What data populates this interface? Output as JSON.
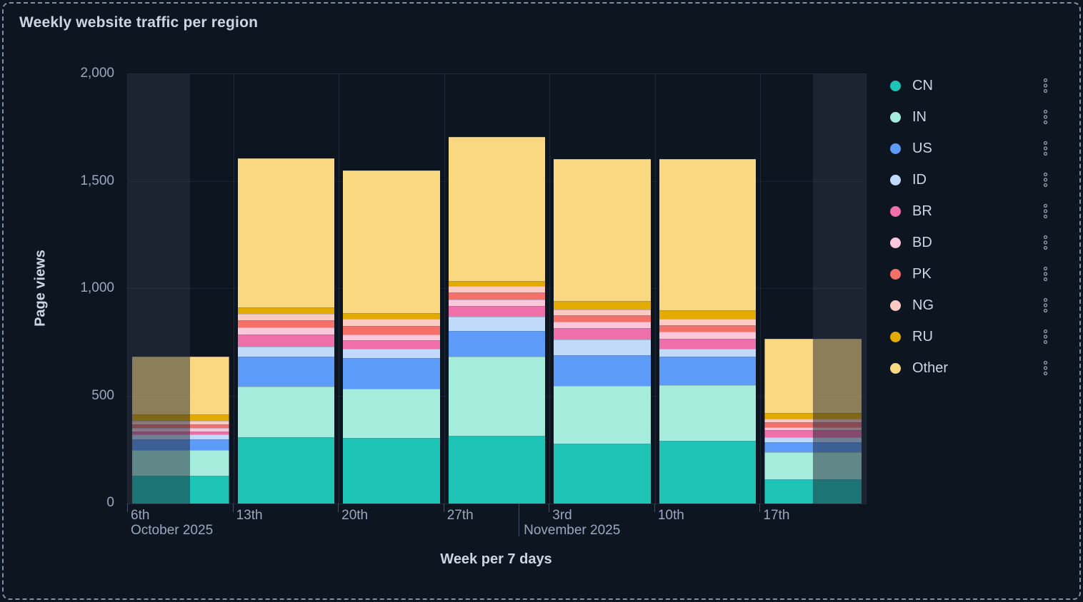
{
  "panel": {
    "title": "Weekly website traffic per region"
  },
  "colors": {
    "background": "#0d1521",
    "panel_border": "#7e90a8",
    "text_primary": "#ccd5e3",
    "text_muted": "#9aa8bf",
    "out_of_range_overlay": "rgba(164,180,210,0.10)"
  },
  "chart_data": {
    "type": "bar",
    "stacked": true,
    "title": "Weekly website traffic per region",
    "xlabel": "Week per 7 days",
    "ylabel": "Page views",
    "ylim": [
      0,
      2000
    ],
    "yticks": [
      {
        "v": 0,
        "label": "0"
      },
      {
        "v": 500,
        "label": "500"
      },
      {
        "v": 1000,
        "label": "1,000"
      },
      {
        "v": 1500,
        "label": "1,500"
      },
      {
        "v": 2000,
        "label": "2,000"
      }
    ],
    "grid": true,
    "legend_position": "right",
    "categories": [
      "6th",
      "13th",
      "20th",
      "27th",
      "3rd",
      "10th",
      "17th"
    ],
    "month_labels": [
      "October 2025",
      "November 2025"
    ],
    "series": [
      {
        "name": "CN",
        "color": "#1dc3b5",
        "values": [
          130,
          308,
          307,
          316,
          280,
          291,
          114
        ]
      },
      {
        "name": "IN",
        "color": "#a5ecdd",
        "values": [
          120,
          237,
          228,
          368,
          268,
          262,
          124
        ]
      },
      {
        "name": "US",
        "color": "#5c9cf8",
        "values": [
          50,
          140,
          143,
          120,
          144,
          131,
          47
        ]
      },
      {
        "name": "ID",
        "color": "#c2daf9",
        "values": [
          22,
          45,
          44,
          66,
          71,
          36,
          25
        ]
      },
      {
        "name": "BR",
        "color": "#ee6fa9",
        "values": [
          14,
          56,
          39,
          50,
          53,
          47,
          33
        ]
      },
      {
        "name": "BD",
        "color": "#fac6da",
        "values": [
          16,
          35,
          28,
          30,
          31,
          33,
          13
        ]
      },
      {
        "name": "PK",
        "color": "#f4716a",
        "values": [
          17,
          33,
          37,
          33,
          30,
          31,
          22
        ]
      },
      {
        "name": "NG",
        "color": "#fbcac2",
        "values": [
          18,
          29,
          33,
          29,
          28,
          30,
          18
        ]
      },
      {
        "name": "RU",
        "color": "#e3aa00",
        "values": [
          27,
          30,
          28,
          25,
          39,
          39,
          25
        ]
      },
      {
        "name": "Other",
        "color": "#fad881",
        "values": [
          272,
          694,
          664,
          670,
          662,
          706,
          345
        ]
      }
    ],
    "totals": [
      686,
      1607,
      1551,
      1707,
      1606,
      1606,
      766
    ]
  },
  "legend": {
    "menu_icon": "kebab-menu-icon"
  }
}
